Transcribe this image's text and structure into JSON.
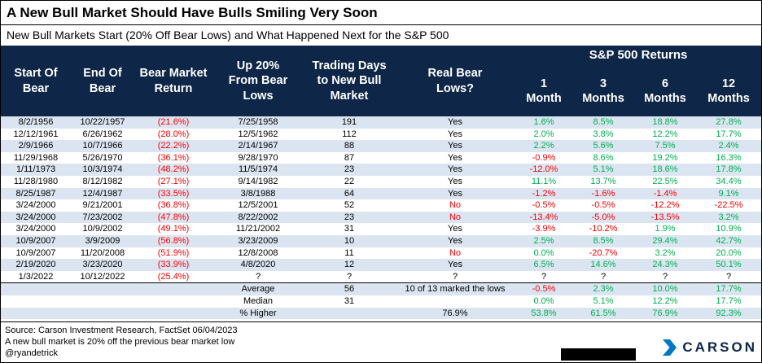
{
  "chart_data": {
    "type": "table",
    "title": "A New Bull Market Should Have Bulls Smiling Very Soon",
    "subtitle": "New Bull Markets Start (20% Off Bear Lows) and What Happened Next for the S&P 500",
    "group_header": "S&P 500 Returns",
    "columns": [
      "Start Of\nBear",
      "End Of\nBear",
      "Bear Market\nReturn",
      "Up 20%\nFrom Bear\nLows",
      "Trading Days\nto New Bull\nMarket",
      "Real Bear\nLows?",
      "1\nMonth",
      "3\nMonths",
      "6\nMonths",
      "12\nMonths"
    ],
    "rows": [
      [
        "8/2/1956",
        "10/22/1957",
        "(21.6%)",
        "7/25/1958",
        "191",
        "Yes",
        "1.6%",
        "8.5%",
        "18.8%",
        "27.8%"
      ],
      [
        "12/12/1961",
        "6/26/1962",
        "(28.0%)",
        "12/5/1962",
        "112",
        "Yes",
        "2.0%",
        "3.8%",
        "12.2%",
        "17.7%"
      ],
      [
        "2/9/1966",
        "10/7/1966",
        "(22.2%)",
        "2/14/1967",
        "88",
        "Yes",
        "2.2%",
        "5.6%",
        "7.5%",
        "2.4%"
      ],
      [
        "11/29/1968",
        "5/26/1970",
        "(36.1%)",
        "9/28/1970",
        "87",
        "Yes",
        "-0.9%",
        "8.6%",
        "19.2%",
        "16.3%"
      ],
      [
        "1/11/1973",
        "10/3/1974",
        "(48.2%)",
        "11/5/1974",
        "23",
        "Yes",
        "-12.0%",
        "5.1%",
        "18.6%",
        "17.8%"
      ],
      [
        "11/28/1980",
        "8/12/1982",
        "(27.1%)",
        "9/14/1982",
        "22",
        "Yes",
        "11.1%",
        "13.7%",
        "22.5%",
        "34.4%"
      ],
      [
        "8/25/1987",
        "12/4/1987",
        "(33.5%)",
        "3/8/1988",
        "64",
        "Yes",
        "-1.2%",
        "-1.6%",
        "-1.4%",
        "9.1%"
      ],
      [
        "3/24/2000",
        "9/21/2001",
        "(36.8%)",
        "12/5/2001",
        "52",
        "No",
        "-0.5%",
        "-0.5%",
        "-12.2%",
        "-22.5%"
      ],
      [
        "3/24/2000",
        "7/23/2002",
        "(47.8%)",
        "8/22/2002",
        "23",
        "No",
        "-13.4%",
        "-5.0%",
        "-13.5%",
        "3.2%"
      ],
      [
        "3/24/2000",
        "10/9/2002",
        "(49.1%)",
        "11/21/2002",
        "31",
        "Yes",
        "-3.9%",
        "-10.2%",
        "1.9%",
        "10.9%"
      ],
      [
        "10/9/2007",
        "3/9/2009",
        "(56.8%)",
        "3/23/2009",
        "10",
        "Yes",
        "2.5%",
        "8.5%",
        "29.4%",
        "42.7%"
      ],
      [
        "10/9/2007",
        "11/20/2008",
        "(51.9%)",
        "12/8/2008",
        "11",
        "No",
        "0.0%",
        "-20.7%",
        "3.2%",
        "20.0%"
      ],
      [
        "2/19/2020",
        "3/23/2020",
        "(33.9%)",
        "4/8/2020",
        "12",
        "Yes",
        "6.5%",
        "14.6%",
        "24.3%",
        "50.1%"
      ],
      [
        "1/3/2022",
        "10/12/2022",
        "(25.4%)",
        "?",
        "?",
        "?",
        "?",
        "?",
        "?",
        "?"
      ]
    ],
    "summary_rows": [
      [
        "",
        "",
        "",
        "Average",
        "56",
        "10 of 13 marked the lows",
        "-0.5%",
        "2.3%",
        "10.0%",
        "17.7%"
      ],
      [
        "",
        "",
        "",
        "Median",
        "31",
        "",
        "0.0%",
        "5.1%",
        "12.2%",
        "17.7%"
      ],
      [
        "",
        "",
        "",
        "% Higher",
        "",
        "76.9%",
        "53.8%",
        "61.5%",
        "76.9%",
        "92.3%"
      ]
    ]
  },
  "footer": {
    "source": "Source: Carson Investment Research, FactSet 06/04/2023",
    "note": "A new bull market is 20% off the previous bear market low",
    "handle": "@ryandetrick",
    "logo_text": "CARSON"
  },
  "colors": {
    "header_navy": "#0e2647",
    "row_alt_blue": "#dbe5f1",
    "positive_green": "#00b050",
    "negative_red": "#ff0000",
    "logo_blue": "#0077c8"
  }
}
